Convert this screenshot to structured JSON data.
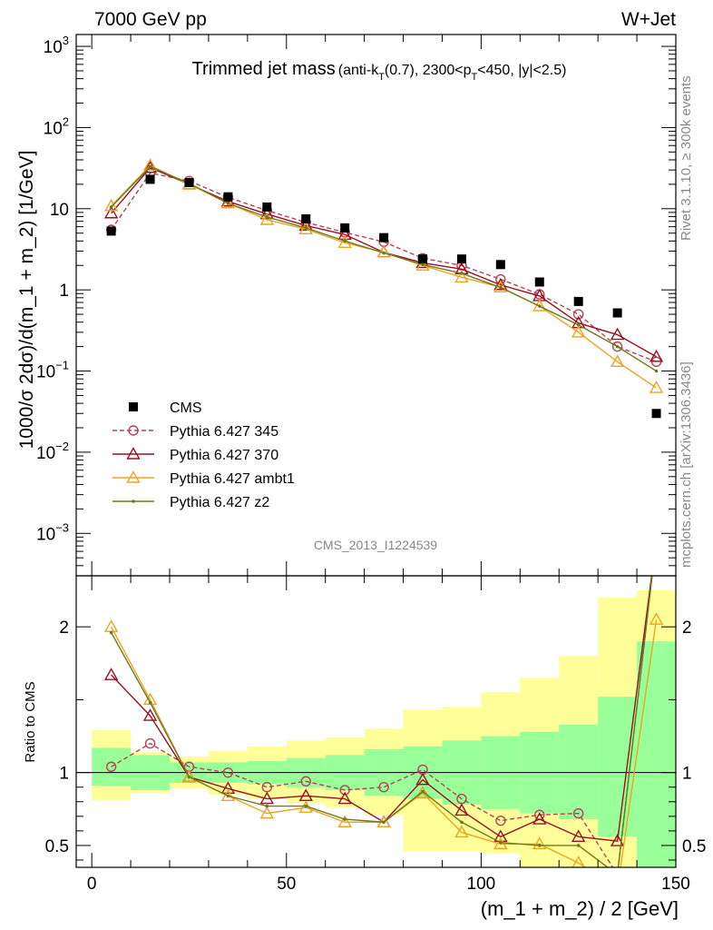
{
  "header": {
    "left": "7000 GeV pp",
    "right": "W+Jet"
  },
  "title": {
    "main": "Trimmed jet mass",
    "qualifier_prefix": "(anti-k",
    "qualifier_sub1": "T",
    "qualifier_mid": "(0.7), 2300<p",
    "qualifier_sub2": "T",
    "qualifier_suffix": "<450, |y|<2.5)"
  },
  "ylabel_main": "1000/σ 2dσ)/d(m_1 + m_2) [1/GeV]",
  "ylabel_ratio": "Ratio to CMS",
  "xlabel": "(m_1 + m_2) / 2 [GeV]",
  "side_right_top": "Rivet 3.1.10, ≥ 300k events",
  "side_right_bottom": "mcplots.cern.ch [arXiv:1306.3436]",
  "watermark": "CMS_2013_I1224539",
  "colors": {
    "cms": "#000000",
    "p345": "#b24456",
    "p370": "#9a1020",
    "ambt1": "#eda41d",
    "z2": "#6b7a1c",
    "band_green": "#99ff99",
    "band_yellow": "#ffff99"
  },
  "chart_data": {
    "type": "scatter",
    "x": [
      5,
      15,
      25,
      35,
      45,
      55,
      65,
      75,
      85,
      95,
      105,
      115,
      125,
      135,
      145
    ],
    "x_edges": [
      0,
      10,
      20,
      30,
      40,
      50,
      60,
      70,
      80,
      90,
      100,
      110,
      120,
      130,
      140,
      150
    ],
    "xlim": [
      -4,
      150
    ],
    "x_ticks": [
      "0",
      "50",
      "100",
      "150"
    ],
    "main_panel": {
      "yscale": "log",
      "ylim": [
        0.0003,
        1400
      ],
      "y_ticks": [
        {
          "base": "10",
          "exp": "3"
        },
        {
          "base": "10",
          "exp": "2"
        },
        {
          "base": "10",
          "exp": ""
        },
        {
          "base": "1",
          "exp": ""
        },
        {
          "base": "10",
          "exp": "−1"
        },
        {
          "base": "10",
          "exp": "−2"
        },
        {
          "base": "10",
          "exp": "−3"
        }
      ],
      "series": [
        {
          "name": "CMS",
          "values": [
            5.3,
            23,
            21,
            14,
            10.5,
            7.5,
            5.8,
            4.4,
            2.4,
            2.4,
            2.05,
            1.25,
            0.72,
            0.52,
            0.03
          ]
        },
        {
          "name": "Pythia 6.427 345",
          "values": [
            5.5,
            27.5,
            22,
            13.8,
            9.5,
            6.8,
            5.1,
            3.9,
            2.45,
            2.0,
            1.35,
            0.88,
            0.5,
            0.2,
            0.13
          ]
        },
        {
          "name": "Pythia 6.427 370",
          "values": [
            8.8,
            32,
            20,
            12.3,
            8.6,
            6.2,
            4.8,
            2.9,
            2.15,
            1.8,
            1.15,
            0.84,
            0.39,
            0.28,
            0.15
          ]
        },
        {
          "name": "Pythia 6.427 ambt1",
          "values": [
            10.8,
            34,
            20,
            11.7,
            7.3,
            5.6,
            3.8,
            2.9,
            2.0,
            1.43,
            1.08,
            0.63,
            0.3,
            0.13,
            0.062
          ]
        },
        {
          "name": "Pythia 6.427 z2",
          "values": [
            10.5,
            33,
            20.5,
            11.6,
            7.9,
            5.8,
            4.0,
            2.85,
            2.05,
            1.6,
            1.07,
            0.63,
            0.37,
            0.2,
            0.1
          ]
        }
      ]
    },
    "ratio_panel": {
      "ylim": [
        0.35,
        2.35
      ],
      "y_ticks": [
        "0.5",
        "1",
        "2"
      ],
      "band_green": [
        [
          0.91,
          1.17
        ],
        [
          0.88,
          1.12
        ],
        [
          0.93,
          1.07
        ],
        [
          0.93,
          1.07
        ],
        [
          0.92,
          1.08
        ],
        [
          0.9,
          1.1
        ],
        [
          0.88,
          1.12
        ],
        [
          0.84,
          1.16
        ],
        [
          0.82,
          1.18
        ],
        [
          0.78,
          1.22
        ],
        [
          0.75,
          1.25
        ],
        [
          0.72,
          1.28
        ],
        [
          0.68,
          1.33
        ],
        [
          0.56,
          1.52
        ],
        [
          0.35,
          1.9
        ]
      ],
      "band_yellow": [
        [
          0.81,
          1.29
        ],
        [
          0.86,
          1.14
        ],
        [
          0.89,
          1.11
        ],
        [
          0.85,
          1.15
        ],
        [
          0.82,
          1.18
        ],
        [
          0.79,
          1.22
        ],
        [
          0.76,
          1.24
        ],
        [
          0.71,
          1.3
        ],
        [
          0.46,
          1.43
        ],
        [
          0.46,
          1.45
        ],
        [
          0.45,
          1.55
        ],
        [
          0.35,
          1.65
        ],
        [
          0.35,
          1.8
        ],
        [
          0.35,
          2.2
        ],
        [
          0.35,
          2.25
        ]
      ],
      "series": [
        {
          "name": "Pythia 6.427 345",
          "values": [
            1.04,
            1.2,
            1.04,
            1.0,
            0.9,
            0.94,
            0.88,
            0.9,
            1.02,
            0.82,
            0.67,
            0.71,
            0.72,
            0.3,
            2.6
          ]
        },
        {
          "name": "Pythia 6.427 370",
          "values": [
            1.67,
            1.39,
            0.97,
            0.89,
            0.82,
            0.84,
            0.82,
            0.66,
            0.95,
            0.74,
            0.56,
            0.68,
            0.56,
            0.53,
            2.6
          ]
        },
        {
          "name": "Pythia 6.427 ambt1",
          "values": [
            2.0,
            1.5,
            0.97,
            0.84,
            0.72,
            0.76,
            0.66,
            0.66,
            0.86,
            0.59,
            0.51,
            0.51,
            0.38,
            0.2,
            2.05
          ]
        },
        {
          "name": "Pythia 6.427 z2",
          "values": [
            1.96,
            1.48,
            0.97,
            0.84,
            0.77,
            0.77,
            0.68,
            0.66,
            0.87,
            0.66,
            0.52,
            0.5,
            0.5,
            0.3,
            2.6
          ]
        }
      ]
    },
    "legend": [
      {
        "label": "CMS",
        "marker": "square",
        "series": "cms"
      },
      {
        "label": "Pythia 6.427 345",
        "marker": "circle",
        "dashed": true,
        "series": "p345"
      },
      {
        "label": "Pythia 6.427 370",
        "marker": "triangle",
        "series": "p370"
      },
      {
        "label": "Pythia 6.427 ambt1",
        "marker": "triangle",
        "series": "ambt1"
      },
      {
        "label": "Pythia 6.427 z2",
        "marker": "dot",
        "series": "z2"
      }
    ],
    "legend_position": "bottom-left"
  }
}
